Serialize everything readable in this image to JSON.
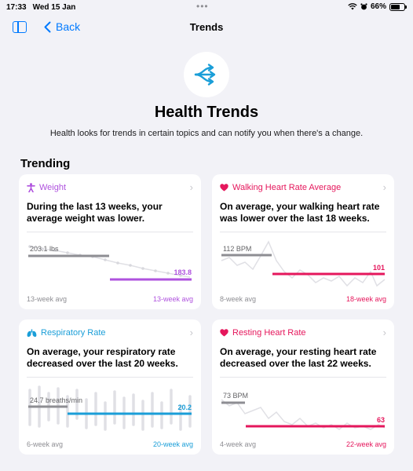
{
  "status": {
    "time": "17:33",
    "date": "Wed 15 Jan",
    "battery": "66%"
  },
  "nav": {
    "back_label": "Back",
    "title": "Trends"
  },
  "hero": {
    "title": "Health Trends",
    "subtitle": "Health looks for trends in certain topics and can notify you when there's a change."
  },
  "section_title": "Trending",
  "colors": {
    "accent": "#007aff",
    "weight": "#af52de",
    "heart": "#e5175c",
    "resp": "#1a9ed8"
  },
  "cards": [
    {
      "title": "Weight",
      "icon": "figure-icon",
      "text": "During the last 13 weeks, your average weight was lower.",
      "old_label": "203.1 lbs",
      "new_label": "183.8",
      "old_avg": 203.1,
      "new_avg": 183.8,
      "foot_left": "13-week avg",
      "foot_right": "13-week avg"
    },
    {
      "title": "Walking Heart Rate Average",
      "icon": "heart-icon",
      "text": "On average, your walking heart rate was lower over the last 18 weeks.",
      "old_label": "112 BPM",
      "new_label": "101",
      "old_avg": 112,
      "new_avg": 101,
      "foot_left": "8-week avg",
      "foot_right": "18-week avg"
    },
    {
      "title": "Respiratory Rate",
      "icon": "lungs-icon",
      "text": "On average, your respiratory rate decreased over the last 20 weeks.",
      "old_label": "24.7 breaths/min",
      "new_label": "20.2",
      "old_avg": 24.7,
      "new_avg": 20.2,
      "foot_left": "6-week avg",
      "foot_right": "20-week avg"
    },
    {
      "title": "Resting Heart Rate",
      "icon": "heart-icon",
      "text": "On average, your resting heart rate decreased over the last 22 weeks.",
      "old_label": "73 BPM",
      "new_label": "63",
      "old_avg": 73,
      "new_avg": 63,
      "foot_left": "4-week avg",
      "foot_right": "22-week avg"
    }
  ]
}
